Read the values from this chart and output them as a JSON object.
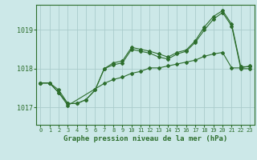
{
  "title": "Graphe pression niveau de la mer (hPa)",
  "background_color": "#cce8e8",
  "grid_color": "#aacccc",
  "line_color": "#2d6e2d",
  "xlim": [
    -0.5,
    23.5
  ],
  "ylim": [
    1016.55,
    1019.65
  ],
  "xticks": [
    0,
    1,
    2,
    3,
    4,
    5,
    6,
    7,
    8,
    9,
    10,
    11,
    12,
    13,
    14,
    15,
    16,
    17,
    18,
    19,
    20,
    21,
    22,
    23
  ],
  "yticks": [
    1017,
    1018,
    1019
  ],
  "line1_x": [
    0,
    1,
    2,
    3,
    4,
    5,
    6,
    7,
    8,
    9,
    10,
    11,
    12,
    13,
    14,
    15,
    16,
    17,
    18,
    19,
    20,
    21,
    22,
    23
  ],
  "line1": [
    1017.63,
    1017.63,
    1017.45,
    1017.1,
    1017.1,
    1017.2,
    1017.45,
    1018.0,
    1018.15,
    1018.2,
    1018.55,
    1018.5,
    1018.45,
    1018.38,
    1018.3,
    1018.42,
    1018.48,
    1018.72,
    1019.08,
    1019.35,
    1019.5,
    1019.15,
    1018.05,
    1018.05
  ],
  "line2_x": [
    0,
    1,
    2,
    3,
    4,
    5,
    6,
    7,
    8,
    9,
    10,
    11,
    12,
    13,
    14,
    15,
    16,
    17,
    18,
    19,
    20,
    21,
    22,
    23
  ],
  "line2": [
    1017.63,
    1017.63,
    1017.38,
    1017.1,
    1017.1,
    1017.2,
    1017.45,
    1018.0,
    1018.1,
    1018.15,
    1018.5,
    1018.45,
    1018.4,
    1018.3,
    1018.25,
    1018.38,
    1018.45,
    1018.68,
    1019.0,
    1019.28,
    1019.45,
    1019.1,
    1018.0,
    1018.0
  ],
  "line3_x": [
    0,
    1,
    2,
    3,
    7,
    8,
    9,
    10,
    11,
    12,
    13,
    14,
    15,
    16,
    17,
    18,
    19,
    20,
    21,
    22,
    23
  ],
  "line3": [
    1017.63,
    1017.63,
    1017.38,
    1017.05,
    1017.62,
    1017.72,
    1017.78,
    1017.88,
    1017.93,
    1018.02,
    1018.02,
    1018.07,
    1018.12,
    1018.17,
    1018.22,
    1018.32,
    1018.38,
    1018.42,
    1018.02,
    1018.02,
    1018.07
  ],
  "xtick_fontsize": 5.0,
  "ytick_fontsize": 6.0,
  "xlabel_fontsize": 6.5
}
